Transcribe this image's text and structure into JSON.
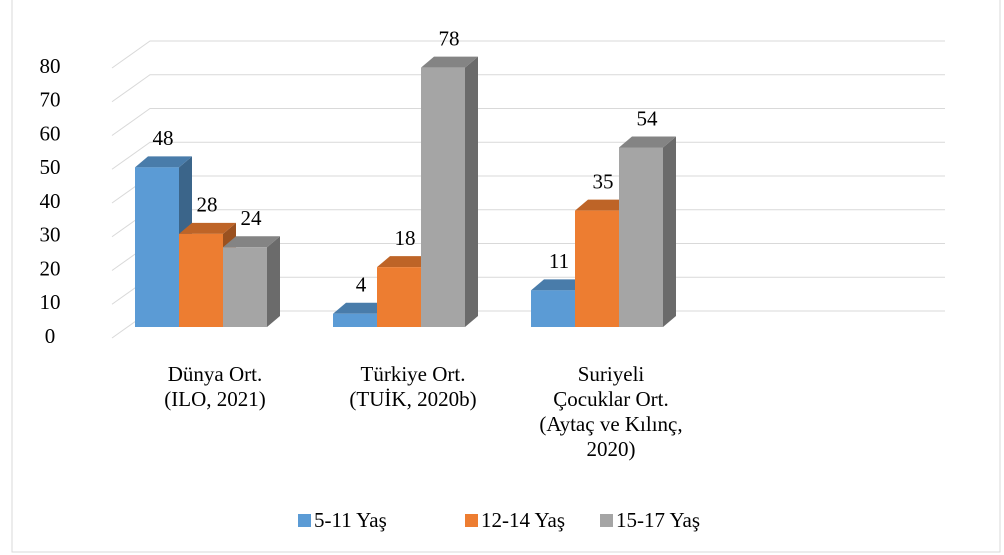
{
  "chart_data": {
    "type": "bar3d",
    "categories": [
      "Dünya Ort.\n(ILO, 2021)",
      "Türkiye Ort.\n(TUİK, 2020b)",
      "Suriyeli\nÇocuklar Ort.\n(Aytaç ve Kılınç,\n2020)"
    ],
    "series": [
      {
        "name": "5-11 Yaş",
        "color": "#5b9bd5",
        "values": [
          48,
          4,
          11
        ]
      },
      {
        "name": "12-14 Yaş",
        "color": "#ed7d31",
        "values": [
          28,
          18,
          35
        ]
      },
      {
        "name": "15-17 Yaş",
        "color": "#a5a5a5",
        "values": [
          24,
          78,
          54
        ]
      }
    ],
    "ylim": [
      0,
      80
    ],
    "yticks": [
      0,
      10,
      20,
      30,
      40,
      50,
      60,
      70,
      80
    ],
    "grid": true,
    "legend": "bottom"
  }
}
